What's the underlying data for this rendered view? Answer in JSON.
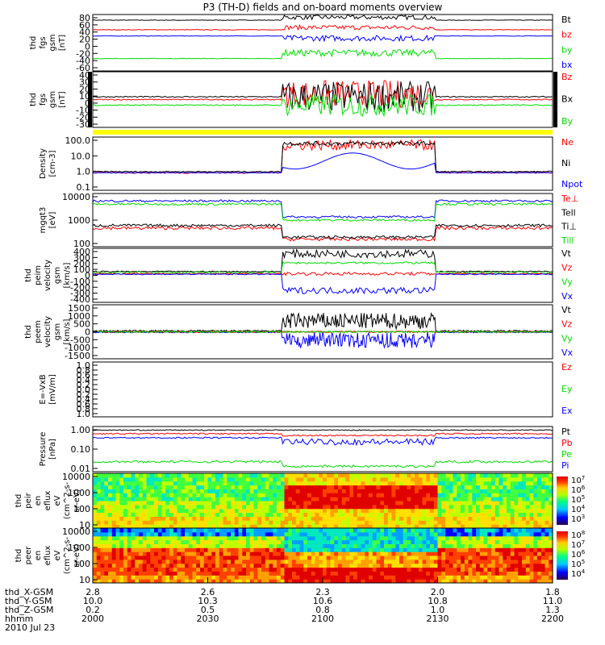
{
  "title": "P3 (TH-D) fields and on-board moments overview",
  "colors": {
    "black": "#000000",
    "red": "#ff0000",
    "green": "#00dd00",
    "blue": "#0000ff",
    "yellow": "#ffff00"
  },
  "chart_data": {
    "type": "line",
    "x_time": [
      "2000",
      "2030",
      "2100",
      "2130",
      "2200"
    ],
    "ephemeris": {
      "labels": [
        "thd_X-GSM",
        "thd_Y-GSM",
        "thd_Z-GSM",
        "hhmm",
        "2010 Jul 23"
      ],
      "rows": [
        [
          "2.8",
          "2.6",
          "2.3",
          "2.0",
          "1.8"
        ],
        [
          "10.0",
          "10.3",
          "10.6",
          "10.8",
          "11.0"
        ],
        [
          "0.2",
          "0.5",
          "0.8",
          "1.0",
          "1.3"
        ],
        [
          "2000",
          "2030",
          "2100",
          "2130",
          "2200"
        ]
      ]
    },
    "panels": [
      {
        "id": "fgs-mag",
        "ylabel": [
          "thd",
          "fgs",
          "gsm",
          "[nT]"
        ],
        "yticks": [
          "80",
          "60",
          "40",
          "20",
          "0",
          "-20",
          "-40",
          "-60"
        ],
        "legend": [
          {
            "name": "Bt",
            "color": "#000000"
          },
          {
            "name": "bz",
            "color": "#ff0000"
          },
          {
            "name": "by",
            "color": "#00dd00"
          },
          {
            "name": "bx",
            "color": "#0000ff"
          }
        ]
      },
      {
        "id": "fgs-comp",
        "ylabel": [
          "thd",
          "fgs",
          "gsm",
          "[nT]"
        ],
        "yticks": [
          "40",
          "30",
          "20",
          "10",
          "0",
          "-10",
          "-20",
          "-30"
        ],
        "legend": [
          {
            "name": "Bz",
            "color": "#ff0000"
          },
          {
            "name": "Bx",
            "color": "#000000"
          },
          {
            "name": "By",
            "color": "#00dd00"
          }
        ]
      },
      {
        "id": "density",
        "ylabel": [
          "Density",
          "[cm-3]"
        ],
        "yticks": [
          "100.0",
          "10.0",
          "1.0",
          "0.1"
        ],
        "legend": [
          {
            "name": "Ne",
            "color": "#ff0000"
          },
          {
            "name": "Ni",
            "color": "#000000"
          },
          {
            "name": "Npot",
            "color": "#0000ff"
          }
        ]
      },
      {
        "id": "temperature",
        "ylabel": [
          "mgqt3",
          "[eV]"
        ],
        "yticks": [
          "10000",
          "1000",
          "100"
        ],
        "legend": [
          {
            "name": "Te⊥",
            "color": "#ff0000"
          },
          {
            "name": "Tell",
            "color": "#000000"
          },
          {
            "name": "Ti⊥",
            "color": "#000000"
          },
          {
            "name": "Till",
            "color": "#00dd00"
          }
        ]
      },
      {
        "id": "ion-velocity",
        "ylabel": [
          "thd",
          "peim",
          "velocity",
          "gsm",
          "[km/s]"
        ],
        "yticks": [
          "400",
          "300",
          "200",
          "100",
          "0",
          "-100",
          "-200",
          "-300",
          "-400"
        ],
        "legend": [
          {
            "name": "Vt",
            "color": "#000000"
          },
          {
            "name": "Vz",
            "color": "#ff0000"
          },
          {
            "name": "Vy",
            "color": "#00dd00"
          },
          {
            "name": "Vx",
            "color": "#0000ff"
          }
        ]
      },
      {
        "id": "electron-velocity",
        "ylabel": [
          "thd",
          "peem",
          "velocity",
          "gsm",
          "[km/s]"
        ],
        "yticks": [
          "1500",
          "1000",
          "500",
          "0",
          "-500",
          "-1000",
          "-1500"
        ],
        "legend": [
          {
            "name": "Vt",
            "color": "#000000"
          },
          {
            "name": "Vz",
            "color": "#ff0000"
          },
          {
            "name": "Vy",
            "color": "#00dd00"
          },
          {
            "name": "Vx",
            "color": "#0000ff"
          }
        ]
      },
      {
        "id": "efield",
        "ylabel": [
          "E=-VxB",
          "[mV/m]"
        ],
        "yticks": [
          "1.0",
          "0.8",
          "0.6",
          "0.4",
          "0.2",
          "0.0",
          "0.2",
          "0.4",
          "0.6",
          "0.8",
          "1.0"
        ],
        "legend": [
          {
            "name": "Ez",
            "color": "#ff0000"
          },
          {
            "name": "Ey",
            "color": "#00dd00"
          },
          {
            "name": "Ex",
            "color": "#0000ff"
          }
        ]
      },
      {
        "id": "pressure",
        "ylabel": [
          "Pressure",
          "[nPa]"
        ],
        "yticks": [
          "1.00",
          "0.10",
          "0.01"
        ],
        "legend": [
          {
            "name": "Pt",
            "color": "#000000"
          },
          {
            "name": "Pb",
            "color": "#ff0000"
          },
          {
            "name": "Pe",
            "color": "#00dd00"
          },
          {
            "name": "Pi",
            "color": "#0000ff"
          }
        ]
      },
      {
        "id": "ion-spectrogram",
        "ylabel": [
          "thd",
          "peir",
          "en",
          "eflux",
          "eV",
          "(cm^2-s-",
          "sr-eV)"
        ],
        "yticks": [
          "10000",
          "1000",
          "100",
          "10"
        ],
        "colorbar_exponents": [
          "7",
          "6",
          "5",
          "4",
          "3"
        ]
      },
      {
        "id": "electron-spectrogram",
        "ylabel": [
          "thd",
          "peer",
          "en",
          "eflux",
          "eV",
          "(cm^2-s-",
          "sr-eV)"
        ],
        "yticks": [
          "10000",
          "1000",
          "100",
          "10"
        ],
        "colorbar_exponents": [
          "8",
          "7",
          "6",
          "5",
          "4"
        ]
      }
    ]
  }
}
